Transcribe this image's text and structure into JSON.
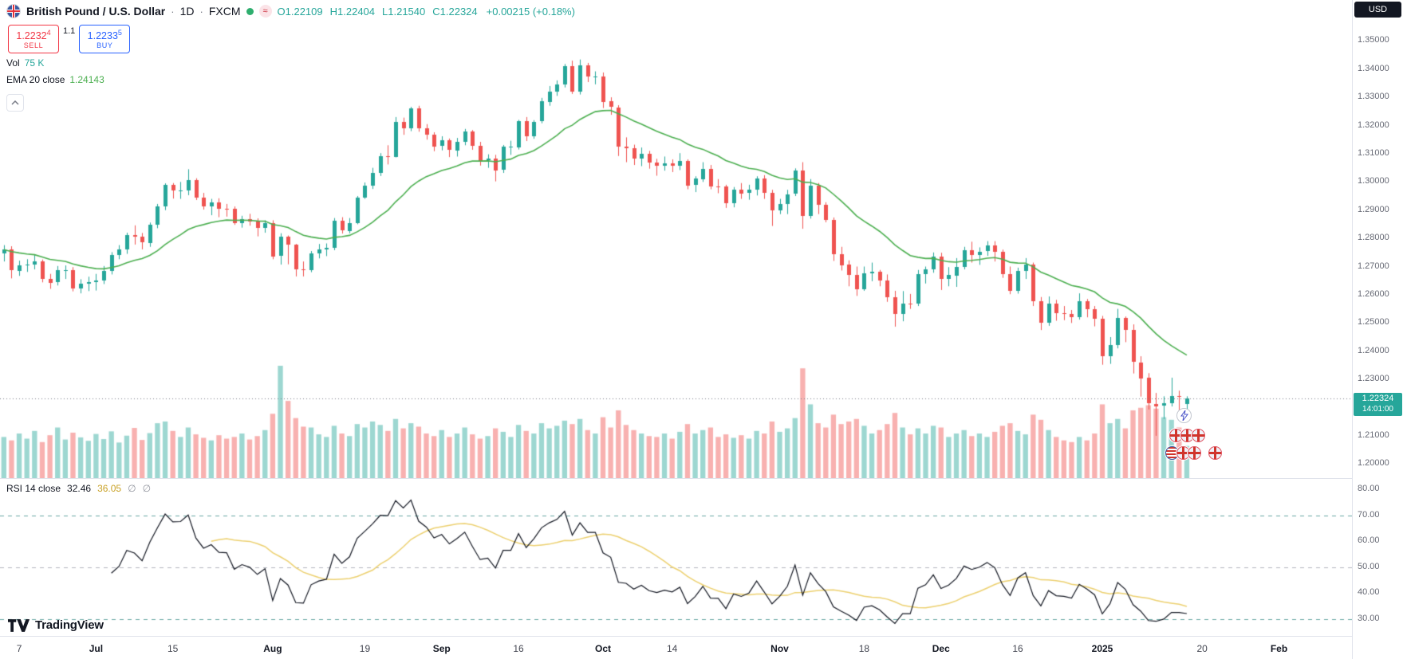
{
  "header": {
    "title": "British Pound / U.S. Dollar",
    "sep1": "·",
    "interval": "1D",
    "sep2": "·",
    "exchange": "FXCM",
    "delayed_glyph": "≈",
    "ohlc": {
      "o_label": "O",
      "o": "1.22109",
      "h_label": "H",
      "h": "1.22404",
      "l_label": "L",
      "l": "1.21540",
      "c_label": "C",
      "c": "1.22324",
      "change": "+0.00215 (+0.18%)"
    }
  },
  "trade": {
    "sell_price": "1.2232",
    "sell_sup": "4",
    "sell_label": "SELL",
    "spread": "1.1",
    "buy_price": "1.2233",
    "buy_sup": "5",
    "buy_label": "BUY"
  },
  "legend": {
    "vol_label": "Vol",
    "vol_value": "75 K",
    "ema_label": "EMA 20 close",
    "ema_value": "1.24143"
  },
  "rsi_legend": {
    "label": "RSI 14 close",
    "value": "32.46",
    "ma_value": "36.05",
    "empty1": "∅",
    "empty2": "∅"
  },
  "axis": {
    "currency": "USD",
    "last_price": "1.22324",
    "countdown": "14:01:00"
  },
  "logo": {
    "text": "TradingView"
  },
  "icons": {
    "symbol_flag": "gb-flag-icon",
    "status": "live-dot-icon",
    "delayed": "delayed-data-icon",
    "collapse": "chevron-up-icon",
    "event": "lightning-icon",
    "calendar_flags": [
      "gb-flag-icon",
      "gb-flag-icon",
      "gb-flag-icon",
      "us-flag-icon",
      "gb-flag-icon",
      "gb-flag-icon",
      "gb-flag-icon"
    ]
  },
  "chart_data": {
    "type": "candlestick",
    "title": "British Pound / U.S. Dollar",
    "symbol": "GBPUSD",
    "interval": "1D",
    "price_range": [
      1.195,
      1.3645
    ],
    "slots": 176,
    "ema_length": 20,
    "colors": {
      "up": "#26a69a",
      "down": "#ef5350",
      "vol_up": "rgba(38,166,154,0.45)",
      "vol_down": "rgba(239,83,80,0.45)",
      "ema": "#4caf50",
      "rsi": "#131722",
      "rsi_ma": "#ecd06f",
      "last_price_bg": "#26a69a",
      "dotted_line": "#787b86"
    },
    "candles": [
      [
        1.2745,
        1.2776,
        1.2718,
        1.276
      ],
      [
        1.276,
        1.2772,
        1.2658,
        1.2686
      ],
      [
        1.2686,
        1.2721,
        1.2667,
        1.2705
      ],
      [
        1.2705,
        1.2726,
        1.2681,
        1.2708
      ],
      [
        1.2708,
        1.2742,
        1.269,
        1.2718
      ],
      [
        1.2718,
        1.2725,
        1.2644,
        1.2657
      ],
      [
        1.2657,
        1.2674,
        1.2621,
        1.2644
      ],
      [
        1.2644,
        1.2702,
        1.2633,
        1.2687
      ],
      [
        1.2687,
        1.2704,
        1.2656,
        1.2687
      ],
      [
        1.2687,
        1.2698,
        1.2612,
        1.2622
      ],
      [
        1.2622,
        1.2655,
        1.2605,
        1.2639
      ],
      [
        1.2639,
        1.2664,
        1.2613,
        1.2645
      ],
      [
        1.2645,
        1.2674,
        1.2615,
        1.265
      ],
      [
        1.265,
        1.2702,
        1.2638,
        1.2685
      ],
      [
        1.2685,
        1.2751,
        1.2672,
        1.2741
      ],
      [
        1.2741,
        1.2776,
        1.2726,
        1.2761
      ],
      [
        1.2761,
        1.282,
        1.2745,
        1.2813
      ],
      [
        1.2813,
        1.2846,
        1.2778,
        1.2806
      ],
      [
        1.2806,
        1.2819,
        1.2761,
        1.2785
      ],
      [
        1.2785,
        1.2856,
        1.277,
        1.2849
      ],
      [
        1.2849,
        1.2922,
        1.2836,
        1.2913
      ],
      [
        1.2913,
        1.2995,
        1.29,
        1.2989
      ],
      [
        1.2989,
        1.2996,
        1.2941,
        1.2968
      ],
      [
        1.2968,
        1.3,
        1.294,
        1.297
      ],
      [
        1.297,
        1.3045,
        1.2953,
        1.3006
      ],
      [
        1.3006,
        1.3013,
        1.2936,
        1.2944
      ],
      [
        1.2944,
        1.2961,
        1.2902,
        1.2913
      ],
      [
        1.2913,
        1.294,
        1.2882,
        1.2928
      ],
      [
        1.2928,
        1.2942,
        1.2875,
        1.2905
      ],
      [
        1.2905,
        1.2922,
        1.2877,
        1.2904
      ],
      [
        1.2904,
        1.2913,
        1.2848,
        1.2853
      ],
      [
        1.2853,
        1.288,
        1.2838,
        1.2868
      ],
      [
        1.2868,
        1.2887,
        1.2845,
        1.286
      ],
      [
        1.286,
        1.2871,
        1.2807,
        1.2838
      ],
      [
        1.2838,
        1.2864,
        1.282,
        1.2854
      ],
      [
        1.2854,
        1.2864,
        1.2726,
        1.2736
      ],
      [
        1.2736,
        1.2818,
        1.2707,
        1.2805
      ],
      [
        1.2805,
        1.281,
        1.2708,
        1.2777
      ],
      [
        1.2777,
        1.278,
        1.2665,
        1.269
      ],
      [
        1.269,
        1.2718,
        1.2665,
        1.2687
      ],
      [
        1.2687,
        1.2755,
        1.268,
        1.2747
      ],
      [
        1.2747,
        1.278,
        1.2729,
        1.276
      ],
      [
        1.276,
        1.2782,
        1.2737,
        1.2766
      ],
      [
        1.2766,
        1.2872,
        1.2758,
        1.2862
      ],
      [
        1.2862,
        1.2875,
        1.2817,
        1.2828
      ],
      [
        1.2828,
        1.2872,
        1.2818,
        1.2855
      ],
      [
        1.2855,
        1.295,
        1.285,
        1.2945
      ],
      [
        1.2945,
        1.2998,
        1.294,
        1.2986
      ],
      [
        1.2986,
        1.305,
        1.2975,
        1.3032
      ],
      [
        1.3032,
        1.3102,
        1.3021,
        1.3091
      ],
      [
        1.3091,
        1.313,
        1.3062,
        1.309
      ],
      [
        1.309,
        1.323,
        1.3087,
        1.3213
      ],
      [
        1.3213,
        1.3228,
        1.3167,
        1.319
      ],
      [
        1.319,
        1.3266,
        1.318,
        1.3262
      ],
      [
        1.3262,
        1.327,
        1.3178,
        1.319
      ],
      [
        1.319,
        1.3205,
        1.315,
        1.3168
      ],
      [
        1.3168,
        1.3176,
        1.3109,
        1.3127
      ],
      [
        1.3127,
        1.3162,
        1.3112,
        1.3148
      ],
      [
        1.3148,
        1.3154,
        1.3088,
        1.3113
      ],
      [
        1.3113,
        1.3156,
        1.309,
        1.3143
      ],
      [
        1.3143,
        1.3188,
        1.313,
        1.318
      ],
      [
        1.318,
        1.3184,
        1.3114,
        1.3128
      ],
      [
        1.3128,
        1.3142,
        1.3058,
        1.3075
      ],
      [
        1.3075,
        1.3098,
        1.305,
        1.3082
      ],
      [
        1.3082,
        1.3096,
        1.3002,
        1.3041
      ],
      [
        1.3041,
        1.3131,
        1.3032,
        1.3124
      ],
      [
        1.3124,
        1.3146,
        1.3096,
        1.3124
      ],
      [
        1.3124,
        1.322,
        1.3115,
        1.3216
      ],
      [
        1.3216,
        1.323,
        1.3145,
        1.3162
      ],
      [
        1.3162,
        1.3219,
        1.3153,
        1.3213
      ],
      [
        1.3213,
        1.3298,
        1.3208,
        1.3285
      ],
      [
        1.3285,
        1.334,
        1.327,
        1.3321
      ],
      [
        1.3321,
        1.336,
        1.3305,
        1.3346
      ],
      [
        1.3346,
        1.3418,
        1.3335,
        1.341
      ],
      [
        1.341,
        1.343,
        1.3312,
        1.3321
      ],
      [
        1.3321,
        1.3434,
        1.331,
        1.3414
      ],
      [
        1.3414,
        1.3422,
        1.3354,
        1.3374
      ],
      [
        1.3374,
        1.3392,
        1.3346,
        1.3375
      ],
      [
        1.3375,
        1.3388,
        1.3262,
        1.3286
      ],
      [
        1.3286,
        1.33,
        1.3238,
        1.3265
      ],
      [
        1.3265,
        1.3272,
        1.3092,
        1.3126
      ],
      [
        1.3126,
        1.3158,
        1.307,
        1.312
      ],
      [
        1.312,
        1.3132,
        1.306,
        1.3084
      ],
      [
        1.3084,
        1.3122,
        1.3056,
        1.3101
      ],
      [
        1.3101,
        1.311,
        1.3047,
        1.3069
      ],
      [
        1.3069,
        1.3082,
        1.3022,
        1.3058
      ],
      [
        1.3058,
        1.309,
        1.304,
        1.3067
      ],
      [
        1.3067,
        1.308,
        1.3035,
        1.3058
      ],
      [
        1.3058,
        1.3102,
        1.3042,
        1.3074
      ],
      [
        1.3074,
        1.308,
        1.2974,
        1.2987
      ],
      [
        1.2987,
        1.302,
        1.2964,
        1.3011
      ],
      [
        1.3011,
        1.307,
        1.3,
        1.3047
      ],
      [
        1.3047,
        1.306,
        1.2974,
        1.2985
      ],
      [
        1.2985,
        1.301,
        1.296,
        1.2984
      ],
      [
        1.2984,
        1.299,
        1.2908,
        1.2925
      ],
      [
        1.2925,
        1.2982,
        1.291,
        1.2974
      ],
      [
        1.2974,
        1.2996,
        1.294,
        1.2961
      ],
      [
        1.2961,
        1.299,
        1.2937,
        1.2972
      ],
      [
        1.2972,
        1.302,
        1.2952,
        1.3012
      ],
      [
        1.3012,
        1.3024,
        1.294,
        1.2961
      ],
      [
        1.2961,
        1.2972,
        1.2844,
        1.2899
      ],
      [
        1.2899,
        1.294,
        1.2886,
        1.2923
      ],
      [
        1.2923,
        1.2972,
        1.2886,
        1.2957
      ],
      [
        1.2957,
        1.3048,
        1.295,
        1.304
      ],
      [
        1.304,
        1.307,
        1.2834,
        1.288
      ],
      [
        1.288,
        1.301,
        1.287,
        1.2987
      ],
      [
        1.2987,
        1.2996,
        1.2886,
        1.292
      ],
      [
        1.292,
        1.2928,
        1.2857,
        1.2866
      ],
      [
        1.2866,
        1.2874,
        1.272,
        1.2745
      ],
      [
        1.2745,
        1.277,
        1.2686,
        1.2706
      ],
      [
        1.2706,
        1.2722,
        1.263,
        1.2669
      ],
      [
        1.2669,
        1.27,
        1.2596,
        1.2619
      ],
      [
        1.2619,
        1.27,
        1.2614,
        1.2676
      ],
      [
        1.2676,
        1.2714,
        1.2648,
        1.2682
      ],
      [
        1.2682,
        1.2688,
        1.263,
        1.265
      ],
      [
        1.265,
        1.2672,
        1.2575,
        1.2591
      ],
      [
        1.2591,
        1.2614,
        1.2487,
        1.2531
      ],
      [
        1.2531,
        1.2613,
        1.2506,
        1.2569
      ],
      [
        1.2569,
        1.2603,
        1.255,
        1.2568
      ],
      [
        1.2568,
        1.2688,
        1.256,
        1.2673
      ],
      [
        1.2673,
        1.27,
        1.264,
        1.2689
      ],
      [
        1.2689,
        1.275,
        1.2678,
        1.2735
      ],
      [
        1.2735,
        1.2749,
        1.2617,
        1.2655
      ],
      [
        1.2655,
        1.2698,
        1.263,
        1.267
      ],
      [
        1.267,
        1.273,
        1.2628,
        1.27
      ],
      [
        1.27,
        1.277,
        1.269,
        1.2759
      ],
      [
        1.2759,
        1.2788,
        1.2714,
        1.2742
      ],
      [
        1.2742,
        1.2768,
        1.2706,
        1.2753
      ],
      [
        1.2753,
        1.279,
        1.2738,
        1.2774
      ],
      [
        1.2774,
        1.279,
        1.2718,
        1.2752
      ],
      [
        1.2752,
        1.276,
        1.266,
        1.2673
      ],
      [
        1.2673,
        1.27,
        1.2602,
        1.2613
      ],
      [
        1.2613,
        1.2696,
        1.2604,
        1.2685
      ],
      [
        1.2685,
        1.273,
        1.2656,
        1.2708
      ],
      [
        1.2708,
        1.2714,
        1.256,
        1.2577
      ],
      [
        1.2577,
        1.2592,
        1.2475,
        1.2502
      ],
      [
        1.2502,
        1.2594,
        1.249,
        1.257
      ],
      [
        1.257,
        1.2582,
        1.2508,
        1.2535
      ],
      [
        1.2535,
        1.256,
        1.251,
        1.2531
      ],
      [
        1.2531,
        1.2546,
        1.25,
        1.252
      ],
      [
        1.252,
        1.2605,
        1.2512,
        1.2576
      ],
      [
        1.2576,
        1.2585,
        1.252,
        1.2549
      ],
      [
        1.2549,
        1.256,
        1.2488,
        1.2516
      ],
      [
        1.2516,
        1.2525,
        1.2352,
        1.2383
      ],
      [
        1.2383,
        1.245,
        1.2355,
        1.2423
      ],
      [
        1.2423,
        1.255,
        1.241,
        1.2518
      ],
      [
        1.2518,
        1.2523,
        1.2432,
        1.2475
      ],
      [
        1.2475,
        1.2495,
        1.2321,
        1.2361
      ],
      [
        1.2361,
        1.2382,
        1.2239,
        1.2305
      ],
      [
        1.2305,
        1.2322,
        1.2193,
        1.2214
      ],
      [
        1.2214,
        1.2252,
        1.21,
        1.2206
      ],
      [
        1.2206,
        1.224,
        1.216,
        1.2215
      ],
      [
        1.2215,
        1.2306,
        1.2204,
        1.2241
      ],
      [
        1.2241,
        1.226,
        1.2171,
        1.224
      ],
      [
        1.2211,
        1.224,
        1.2154,
        1.2232
      ]
    ],
    "volumes": [
      96,
      88,
      104,
      92,
      110,
      84,
      100,
      118,
      90,
      106,
      95,
      87,
      103,
      91,
      109,
      83,
      99,
      117,
      89,
      105,
      128,
      132,
      110,
      96,
      118,
      102,
      94,
      88,
      100,
      92,
      96,
      104,
      90,
      98,
      112,
      150,
      262,
      180,
      140,
      120,
      118,
      102,
      96,
      122,
      104,
      98,
      126,
      118,
      132,
      124,
      110,
      138,
      116,
      128,
      120,
      104,
      98,
      112,
      96,
      104,
      118,
      102,
      92,
      98,
      116,
      108,
      96,
      124,
      110,
      104,
      128,
      116,
      122,
      134,
      126,
      138,
      112,
      104,
      142,
      118,
      158,
      124,
      112,
      104,
      98,
      96,
      104,
      92,
      108,
      126,
      104,
      112,
      118,
      96,
      102,
      94,
      100,
      92,
      110,
      104,
      132,
      108,
      116,
      140,
      256,
      172,
      128,
      118,
      148,
      126,
      132,
      138,
      122,
      104,
      112,
      126,
      152,
      118,
      102,
      116,
      104,
      122,
      118,
      96,
      104,
      112,
      98,
      104,
      96,
      108,
      122,
      128,
      110,
      102,
      148,
      136,
      112,
      96,
      88,
      84,
      96,
      88,
      104,
      172,
      128,
      138,
      116,
      158,
      164,
      170,
      162,
      142,
      136,
      118,
      75
    ],
    "rsi": {
      "length": 14,
      "ma_length": 14,
      "range": [
        23.5,
        84
      ],
      "levels": [
        {
          "value": 70,
          "color": "#6aa8a4"
        },
        {
          "value": 50,
          "color": "#b2b5be"
        },
        {
          "value": 30,
          "color": "#6aa8a4"
        }
      ]
    },
    "price_axis": {
      "labels": [
        "1.35000",
        "1.34000",
        "1.33000",
        "1.32000",
        "1.31000",
        "1.30000",
        "1.29000",
        "1.28000",
        "1.27000",
        "1.26000",
        "1.25000",
        "1.24000",
        "1.23000",
        "1.22000",
        "1.21000",
        "1.20000"
      ],
      "values": [
        1.35,
        1.34,
        1.33,
        1.32,
        1.31,
        1.3,
        1.29,
        1.28,
        1.27,
        1.26,
        1.25,
        1.24,
        1.23,
        1.22,
        1.21,
        1.2
      ]
    },
    "rsi_axis": {
      "labels": [
        "80.00",
        "70.00",
        "60.00",
        "50.00",
        "40.00",
        "30.00"
      ],
      "values": [
        80,
        70,
        60,
        50,
        40,
        30
      ]
    },
    "time_ticks": [
      {
        "slot": 2,
        "label": "7"
      },
      {
        "slot": 12,
        "label": "Jul",
        "bold": true
      },
      {
        "slot": 22,
        "label": "15"
      },
      {
        "slot": 35,
        "label": "Aug",
        "bold": true
      },
      {
        "slot": 47,
        "label": "19"
      },
      {
        "slot": 57,
        "label": "Sep",
        "bold": true
      },
      {
        "slot": 67,
        "label": "16"
      },
      {
        "slot": 78,
        "label": "Oct",
        "bold": true
      },
      {
        "slot": 87,
        "label": "14"
      },
      {
        "slot": 101,
        "label": "Nov",
        "bold": true
      },
      {
        "slot": 112,
        "label": "18"
      },
      {
        "slot": 122,
        "label": "Dec",
        "bold": true
      },
      {
        "slot": 132,
        "label": "16"
      },
      {
        "slot": 143,
        "label": "2025",
        "bold": true
      },
      {
        "slot": 156,
        "label": "20"
      },
      {
        "slot": 166,
        "label": "Feb",
        "bold": true
      }
    ]
  }
}
